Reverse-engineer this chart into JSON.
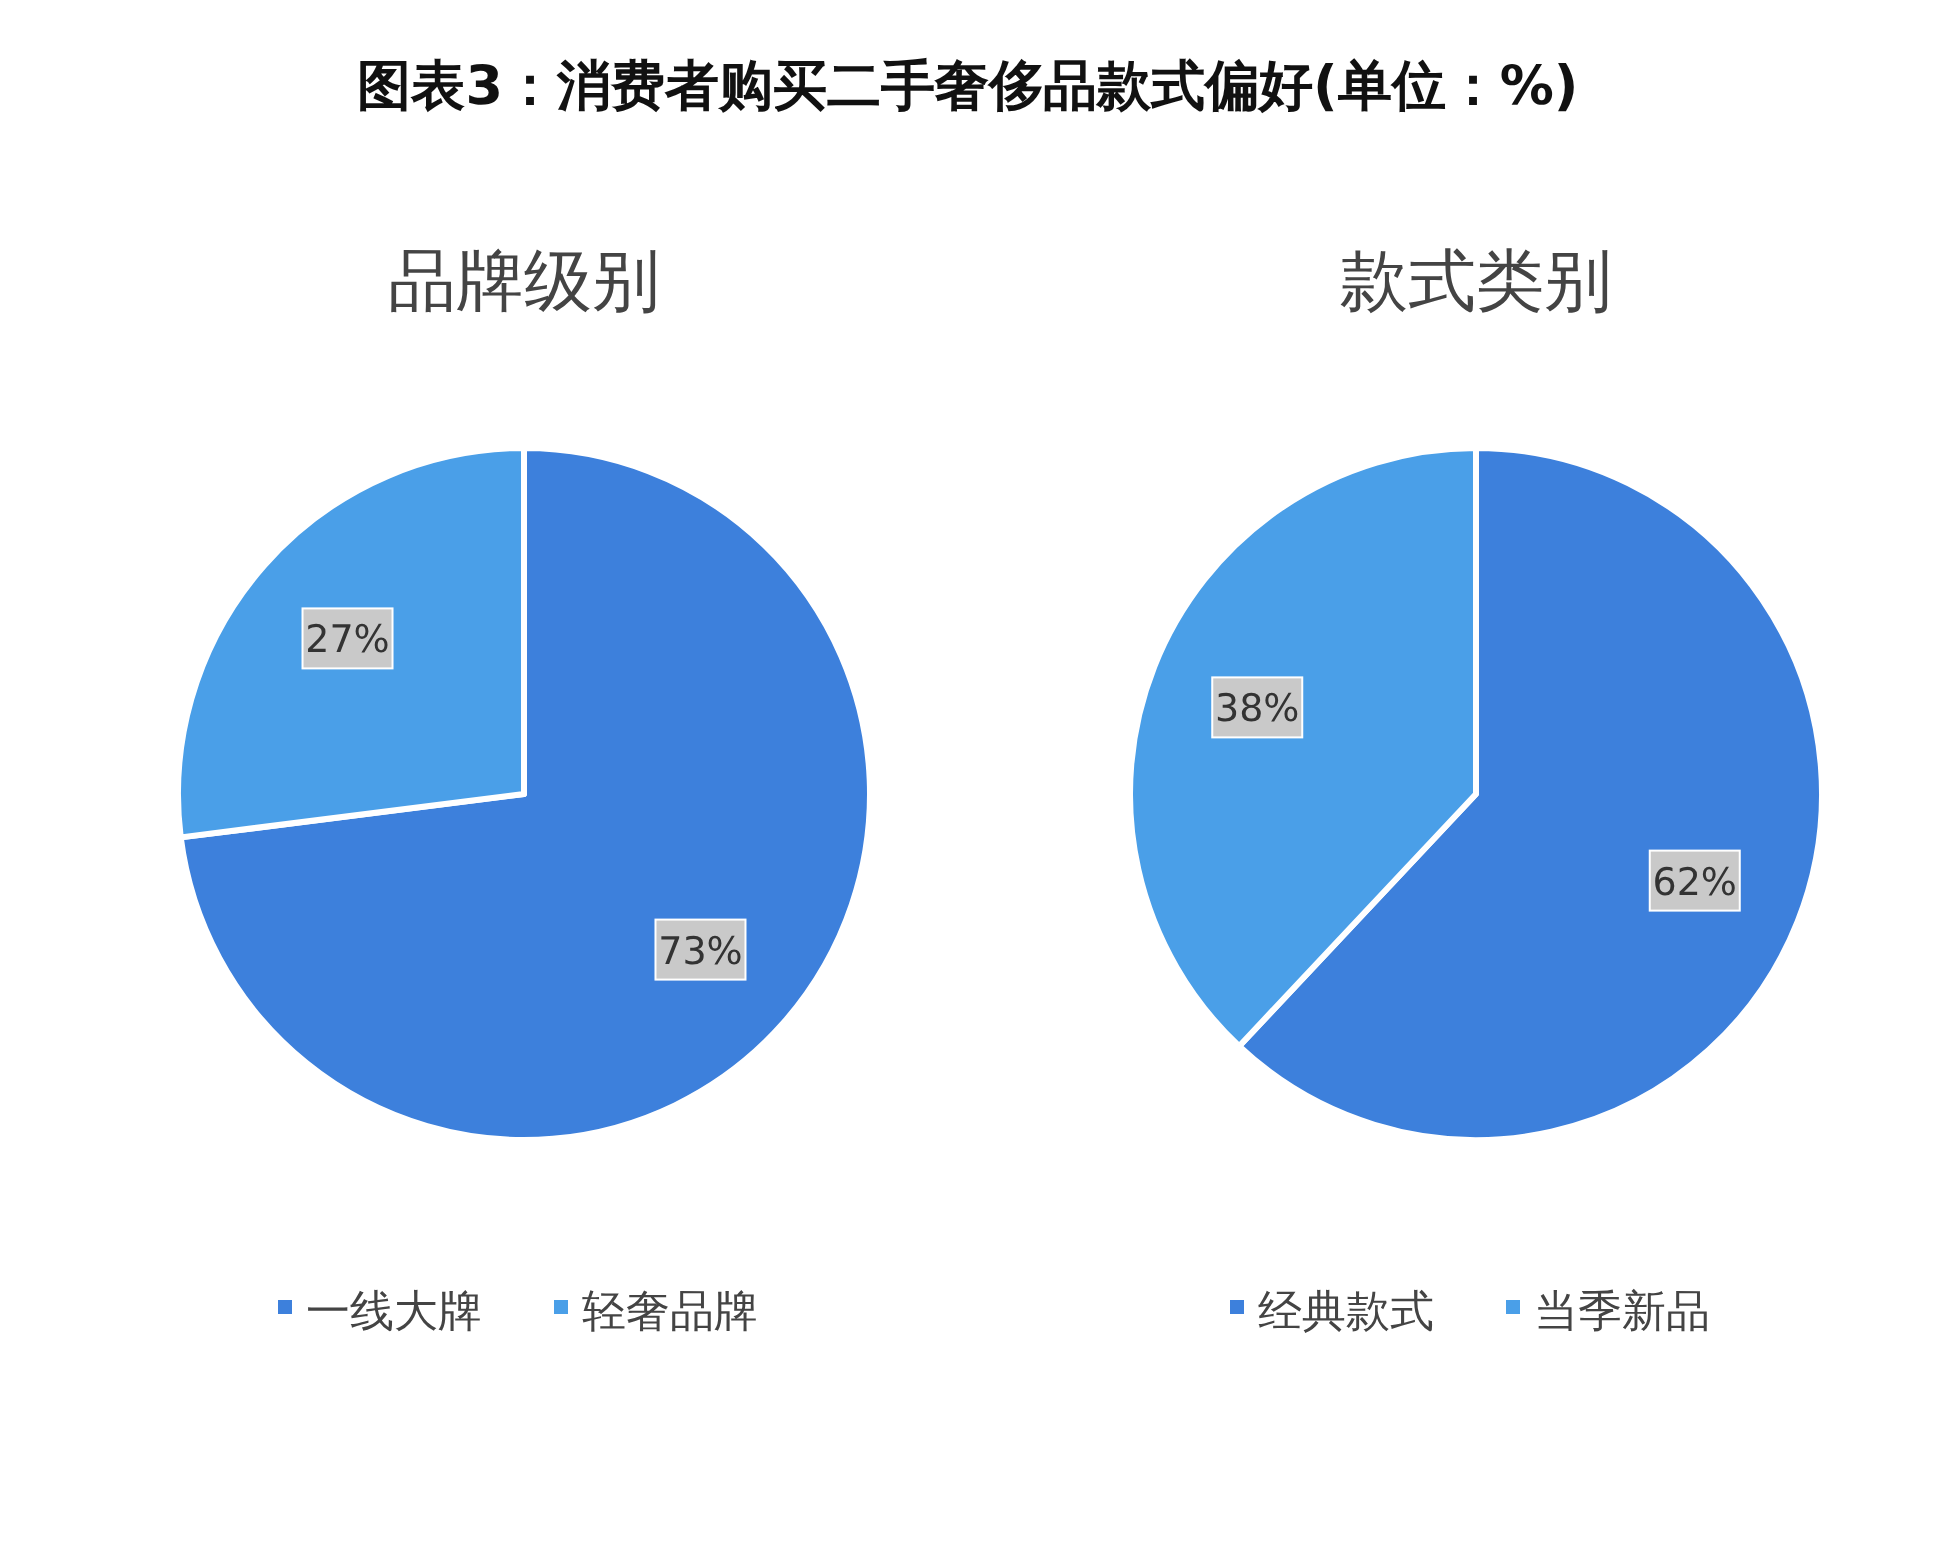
{
  "chart_data": [
    {
      "type": "pie",
      "title": "图表3：消费者购买二手奢侈品款式偏好(单位：%)",
      "subtitle": "品牌级别",
      "categories": [
        "一线大牌",
        "轻奢品牌"
      ],
      "values": [
        73,
        27
      ],
      "colors": [
        "#3d80dc",
        "#4a9fe8"
      ],
      "value_labels": [
        "73%",
        "27%"
      ],
      "legend": "bottom"
    },
    {
      "type": "pie",
      "subtitle": "款式类别",
      "categories": [
        "经典款式",
        "当季新品"
      ],
      "values": [
        62,
        38
      ],
      "colors": [
        "#3d80dc",
        "#4a9fe8"
      ],
      "value_labels": [
        "62%",
        "38%"
      ],
      "legend": "bottom"
    }
  ]
}
